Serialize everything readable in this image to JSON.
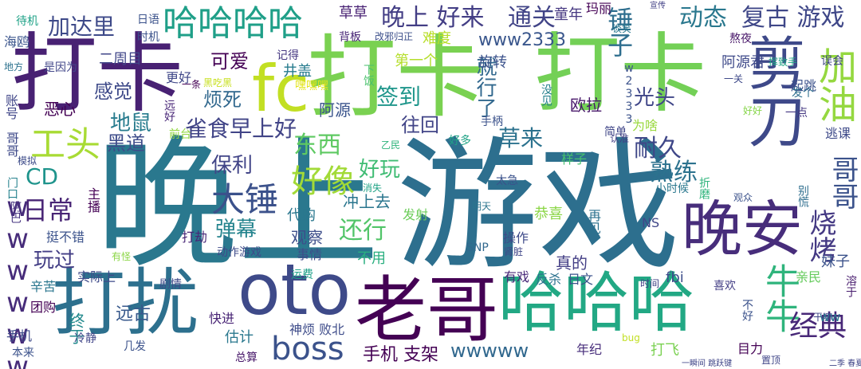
{
  "words": [
    {
      "text": "晚上",
      "color": "#2a788e"
    },
    {
      "text": "游戏",
      "color": "#2d6f8e"
    },
    {
      "text": "打卡",
      "color": "#7ad151"
    },
    {
      "text": "打卡",
      "color": "#482173"
    },
    {
      "text": "打卡",
      "color": "#73d056"
    },
    {
      "text": "打扰",
      "color": "#2d708e"
    },
    {
      "text": "oto",
      "color": "#3e4a89"
    },
    {
      "text": "老哥",
      "color": "#440154"
    },
    {
      "text": "晚安",
      "color": "#472d7b"
    },
    {
      "text": "哈哈哈",
      "color": "#22a884"
    },
    {
      "text": "哈哈哈哈",
      "color": "#1f9f88"
    },
    {
      "text": "fc",
      "color": "#c2df23"
    },
    {
      "text": "boss",
      "color": "#3b528b"
    },
    {
      "text": "剪刀",
      "color": "#3e4989"
    },
    {
      "text": "加油",
      "color": "#95d840"
    },
    {
      "text": "牛牛",
      "color": "#2fb47c"
    },
    {
      "text": "工头",
      "color": "#a8db34"
    },
    {
      "text": "大锤",
      "color": "#3b518b"
    },
    {
      "text": "好像",
      "color": "#a2da37"
    },
    {
      "text": "wwwwww",
      "color": "#472c7a"
    },
    {
      "text": "晚上 好来",
      "color": "#433e85"
    },
    {
      "text": "通关",
      "color": "#414487"
    },
    {
      "text": "复古 游戏",
      "color": "#3f4788"
    },
    {
      "text": "动态",
      "color": "#2a788e"
    },
    {
      "text": "加达里",
      "color": "#3e4a89"
    },
    {
      "text": "锤子",
      "color": "#2e6e8e"
    },
    {
      "text": "雀食早上好",
      "color": "#414487"
    },
    {
      "text": "东西",
      "color": "#5ec962"
    },
    {
      "text": "耐久",
      "color": "#3f4788"
    },
    {
      "text": "熟练",
      "color": "#2c728e"
    },
    {
      "text": "哥哥",
      "color": "#3b528b"
    },
    {
      "text": "烧烤",
      "color": "#443983"
    },
    {
      "text": "日常",
      "color": "#482475"
    },
    {
      "text": "经典",
      "color": "#482878"
    },
    {
      "text": "还行",
      "color": "#52c569"
    },
    {
      "text": "好玩",
      "color": "#3fbc73"
    },
    {
      "text": "弹幕",
      "color": "#25848e"
    },
    {
      "text": "草来",
      "color": "#2c728e"
    },
    {
      "text": "保利",
      "color": "#414487"
    },
    {
      "text": "黑道",
      "color": "#3e4c8a"
    },
    {
      "text": "地鼠",
      "color": "#287c8e"
    },
    {
      "text": "感觉",
      "color": "#3e4a89"
    },
    {
      "text": "烦死",
      "color": "#31688e"
    },
    {
      "text": "可爱",
      "color": "#440154"
    },
    {
      "text": "签到",
      "color": "#1f968b"
    },
    {
      "text": "光头",
      "color": "#404688"
    },
    {
      "text": "就行了",
      "color": "#31688e"
    },
    {
      "text": "往回",
      "color": "#414487"
    },
    {
      "text": "玩过",
      "color": "#433e85"
    },
    {
      "text": "CD",
      "color": "#1f948c"
    },
    {
      "text": "wwwww",
      "color": "#31688e"
    },
    {
      "text": "www2333",
      "color": "#39568c"
    },
    {
      "text": "二周目",
      "color": "#404688"
    },
    {
      "text": "草草",
      "color": "#482173"
    },
    {
      "text": "难度",
      "color": "#b8de29"
    },
    {
      "text": "童年",
      "color": "#453781"
    },
    {
      "text": "旋转",
      "color": "#3b528b"
    },
    {
      "text": "井盖",
      "color": "#287c8e"
    },
    {
      "text": "恶心",
      "color": "#440154"
    },
    {
      "text": "阿源",
      "color": "#3a548c"
    },
    {
      "text": "欧拉",
      "color": "#48186a"
    },
    {
      "text": "手机 支架",
      "color": "#440154"
    },
    {
      "text": "冲上去",
      "color": "#2a768e"
    },
    {
      "text": "观察",
      "color": "#3d4d8a"
    },
    {
      "text": "真的",
      "color": "#433e85"
    },
    {
      "text": "玛丽",
      "color": "#440154"
    },
    {
      "text": "阿源君",
      "color": "#3e4989"
    },
    {
      "text": "第一个",
      "color": "#b5de2b"
    },
    {
      "text": "代购",
      "color": "#2a778e"
    },
    {
      "text": "打劫",
      "color": "#482677"
    },
    {
      "text": "事情",
      "color": "#3e4c8a"
    },
    {
      "text": "不用",
      "color": "#29af7f"
    },
    {
      "text": "有戏",
      "color": "#482878"
    },
    {
      "text": "反杀",
      "color": "#2c728e"
    },
    {
      "text": "日文",
      "color": "#3b528b"
    },
    {
      "text": "恭喜",
      "color": "#8bd646"
    },
    {
      "text": "操作",
      "color": "#3e4a89"
    },
    {
      "text": "发射",
      "color": "#6ccd5a"
    },
    {
      "text": "再见",
      "color": "#2c718e"
    },
    {
      "text": "手柄",
      "color": "#3b528b"
    },
    {
      "text": "好多",
      "color": "#20a386"
    },
    {
      "text": "样子",
      "color": "#46c06f"
    },
    {
      "text": "为啥",
      "color": "#99d83d"
    },
    {
      "text": "简单",
      "color": "#404688"
    },
    {
      "text": "起跳",
      "color": "#3b518b"
    },
    {
      "text": "逃课",
      "color": "#3e4a89"
    },
    {
      "text": "发个",
      "color": "#2e6e8e"
    },
    {
      "text": "好好",
      "color": "#86d549"
    },
    {
      "text": "熬夜",
      "color": "#481769"
    },
    {
      "text": "误会",
      "color": "#404588"
    },
    {
      "text": "一点",
      "color": "#453882"
    },
    {
      "text": "宣传",
      "color": "#424086"
    },
    {
      "text": "谈笑",
      "color": "#2a788e"
    },
    {
      "text": "改邪归正",
      "color": "#3c4f8a"
    },
    {
      "text": "背板",
      "color": "#482576"
    },
    {
      "text": "时机",
      "color": "#3b528b"
    },
    {
      "text": "日语",
      "color": "#3b528b"
    },
    {
      "text": "待机",
      "color": "#1fa287"
    },
    {
      "text": "海鸥",
      "color": "#3a548c"
    },
    {
      "text": "地方",
      "color": "#2c728e"
    },
    {
      "text": "是因为",
      "color": "#404588"
    },
    {
      "text": "更好",
      "color": "#3f4788"
    },
    {
      "text": "记得",
      "color": "#453781"
    },
    {
      "text": "哥哥",
      "color": "#3e4989"
    },
    {
      "text": "账号",
      "color": "#404688"
    },
    {
      "text": "模拟",
      "color": "#3e4c8a"
    },
    {
      "text": "门口",
      "color": "#26828e"
    },
    {
      "text": "阿巴",
      "color": "#463480"
    },
    {
      "text": "主播",
      "color": "#440154"
    },
    {
      "text": "挺不错",
      "color": "#3b528b"
    },
    {
      "text": "有怪",
      "color": "#8bd646"
    },
    {
      "text": "实际上",
      "color": "#3e4a89"
    },
    {
      "text": "辛苦",
      "color": "#2a768e"
    },
    {
      "text": "团购",
      "color": "#440154"
    },
    {
      "text": "手机",
      "color": "#3e4a89"
    },
    {
      "text": "本来",
      "color": "#3b528b"
    },
    {
      "text": "终于",
      "color": "#238a8d"
    },
    {
      "text": "远古",
      "color": "#38598c"
    },
    {
      "text": "剧情",
      "color": "#3e4a89"
    },
    {
      "text": "快进",
      "color": "#482475"
    },
    {
      "text": "冷静",
      "color": "#404588"
    },
    {
      "text": "几发",
      "color": "#3b528b"
    },
    {
      "text": "估计",
      "color": "#2a788e"
    },
    {
      "text": "神烦 败北",
      "color": "#3e4c8a"
    },
    {
      "text": "总算",
      "color": "#48186a"
    },
    {
      "text": "年纪",
      "color": "#472d7b"
    },
    {
      "text": "打飞",
      "color": "#7ad151"
    },
    {
      "text": "目力",
      "color": "#440154"
    },
    {
      "text": "置顶",
      "color": "#404688"
    },
    {
      "text": "bug",
      "color": "#c2df23"
    },
    {
      "text": "fbi",
      "color": "#3d4e8a"
    },
    {
      "text": "时间",
      "color": "#424186"
    },
    {
      "text": "喜欢",
      "color": "#433e85"
    },
    {
      "text": "亲民",
      "color": "#66cb5d"
    },
    {
      "text": "妹子",
      "color": "#3b528b"
    },
    {
      "text": "溶于",
      "color": "#481c6e"
    },
    {
      "text": "干嘛",
      "color": "#404688"
    },
    {
      "text": "不好",
      "color": "#3b528b"
    },
    {
      "text": "ww",
      "color": "#2b748e"
    },
    {
      "text": "NS",
      "color": "#404688"
    },
    {
      "text": "SNP",
      "color": "#31688e"
    },
    {
      "text": "肾脏",
      "color": "#404688"
    },
    {
      "text": "消失",
      "color": "#20a386"
    },
    {
      "text": "小时候",
      "color": "#2a788e"
    },
    {
      "text": "折磨",
      "color": "#2fb47c"
    },
    {
      "text": "观众",
      "color": "#3b528b"
    },
    {
      "text": "别慌",
      "color": "#2e6e8e"
    },
    {
      "text": "太急",
      "color": "#3b528b"
    },
    {
      "text": "明天",
      "color": "#2b758e"
    },
    {
      "text": "乙民",
      "color": "#2fb47c"
    },
    {
      "text": "下饭",
      "color": "#4ac16d"
    },
    {
      "text": "没见",
      "color": "#26818e"
    },
    {
      "text": "一关",
      "color": "#3e4989"
    },
    {
      "text": "认准",
      "color": "#433e85"
    },
    {
      "text": "黑吃黑",
      "color": "#c8e020"
    },
    {
      "text": "嘿嘿嘿",
      "color": "#e3e418"
    },
    {
      "text": "前台",
      "color": "#93d741"
    },
    {
      "text": "一条",
      "color": "#440154"
    },
    {
      "text": "远好",
      "color": "#482677"
    },
    {
      "text": "运费",
      "color": "#1fa088"
    },
    {
      "text": "动作游戏",
      "color": "#3e4a89"
    },
    {
      "text": "w2333",
      "color": "#3b528b"
    },
    {
      "text": "一瞬间 跳跃键",
      "color": "#404688"
    },
    {
      "text": "二季 春夏",
      "color": "#404688"
    },
    {
      "text": "挥致手",
      "color": "#20a386"
    }
  ]
}
